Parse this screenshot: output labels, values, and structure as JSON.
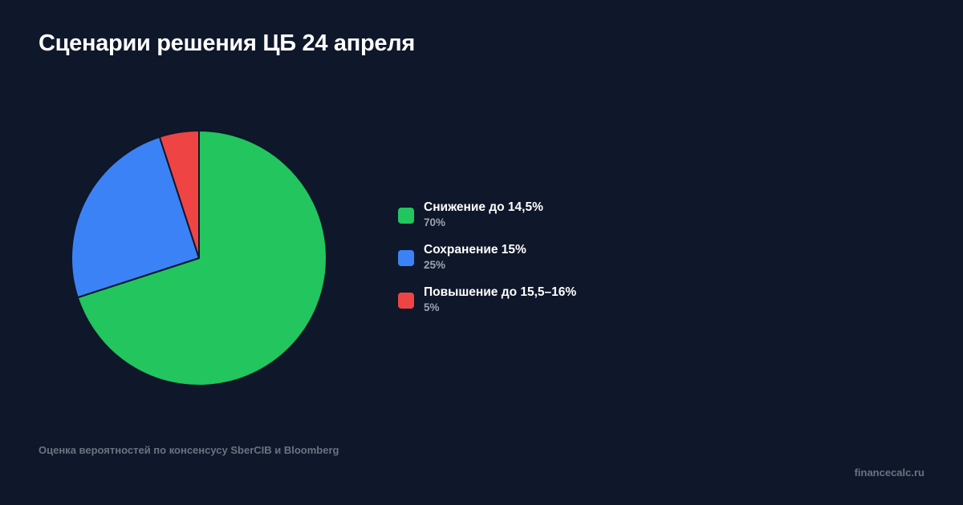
{
  "chart_data": {
    "type": "pie",
    "title": "Сценарии решения ЦБ 24 апреля",
    "slices": [
      {
        "label": "Снижение до 14,5%",
        "value": 70,
        "value_label": "70%",
        "color": "#22c55e"
      },
      {
        "label": "Сохранение 15%",
        "value": 25,
        "value_label": "25%",
        "color": "#3b82f6"
      },
      {
        "label": "Повышение до 15,5–16%",
        "value": 5,
        "value_label": "5%",
        "color": "#ef4444"
      }
    ],
    "legend_position": "right"
  },
  "footer": {
    "source": "Оценка вероятностей по консенсусу SberCIB и Bloomberg",
    "brand": "financecalc.ru"
  },
  "colors": {
    "background": "#0f172a",
    "slice_border": "#0f172a"
  }
}
